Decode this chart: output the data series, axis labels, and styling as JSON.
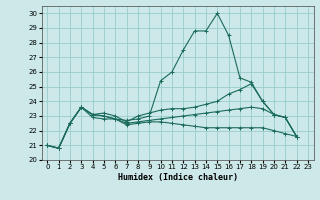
{
  "title": "",
  "xlabel": "Humidex (Indice chaleur)",
  "bg_color": "#cce8e8",
  "grid_color": "#99cccc",
  "line_color": "#1a6b5a",
  "xlim": [
    -0.5,
    23.5
  ],
  "ylim": [
    20,
    30.5
  ],
  "xticks": [
    0,
    1,
    2,
    3,
    4,
    5,
    6,
    7,
    8,
    9,
    10,
    11,
    12,
    13,
    14,
    15,
    16,
    17,
    18,
    19,
    20,
    21,
    22,
    23
  ],
  "yticks": [
    20,
    21,
    22,
    23,
    24,
    25,
    26,
    27,
    28,
    29,
    30
  ],
  "series": [
    [
      21.0,
      20.8,
      22.5,
      23.6,
      22.9,
      22.8,
      22.8,
      22.7,
      22.8,
      23.0,
      25.4,
      26.0,
      27.5,
      28.8,
      28.8,
      30.0,
      28.5,
      25.6,
      25.3,
      24.0,
      23.1,
      22.9,
      21.6
    ],
    [
      21.0,
      20.8,
      22.5,
      23.6,
      23.1,
      23.2,
      23.0,
      22.6,
      23.0,
      23.2,
      23.4,
      23.5,
      23.5,
      23.6,
      23.8,
      24.0,
      24.5,
      24.8,
      25.2,
      24.0,
      23.1,
      22.9,
      21.6
    ],
    [
      21.0,
      20.8,
      22.5,
      23.6,
      23.1,
      23.0,
      22.8,
      22.5,
      22.6,
      22.7,
      22.8,
      22.9,
      23.0,
      23.1,
      23.2,
      23.3,
      23.4,
      23.5,
      23.6,
      23.5,
      23.1,
      22.9,
      21.6
    ],
    [
      21.0,
      20.8,
      22.5,
      23.6,
      23.1,
      23.0,
      22.8,
      22.4,
      22.5,
      22.6,
      22.6,
      22.5,
      22.4,
      22.3,
      22.2,
      22.2,
      22.2,
      22.2,
      22.2,
      22.2,
      22.0,
      21.8,
      21.6
    ]
  ]
}
